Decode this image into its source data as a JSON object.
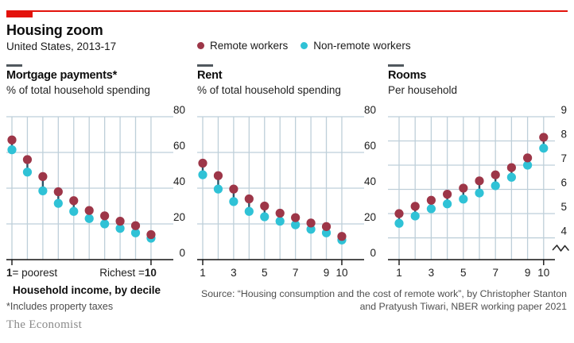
{
  "header": {
    "title": "Housing zoom",
    "subtitle": "United States, 2013-17"
  },
  "legend": {
    "items": [
      {
        "label": "Remote workers",
        "color": "#9d3648"
      },
      {
        "label": "Non-remote workers",
        "color": "#2fc2d6"
      }
    ]
  },
  "colors": {
    "accent_red": "#e3120b",
    "pair_line": "#2d5468",
    "gridline": "#becfd9",
    "axis": "#121212"
  },
  "chart_data": [
    {
      "type": "scatter",
      "title": "Mortgage payments*",
      "subtitle": "% of total household spending",
      "categories": [
        1,
        2,
        3,
        4,
        5,
        6,
        7,
        8,
        9,
        10
      ],
      "series": [
        {
          "name": "Remote workers",
          "values": [
            67,
            56,
            46.5,
            38,
            33,
            27.5,
            24.5,
            21.5,
            19,
            14
          ]
        },
        {
          "name": "Non-remote workers",
          "values": [
            61.5,
            49,
            38.5,
            31.5,
            27,
            23,
            20,
            17.5,
            15,
            12
          ]
        }
      ],
      "ylim": [
        0,
        80
      ],
      "yticks": [
        0,
        20,
        40,
        60,
        80
      ],
      "axis_break": false,
      "xaxis": {
        "style": "endpoints",
        "left_bold": "1",
        "left_text": "= poorest",
        "right_text": "Richest =",
        "right_bold": "10"
      }
    },
    {
      "type": "scatter",
      "title": "Rent",
      "subtitle": "% of total household spending",
      "categories": [
        1,
        2,
        3,
        4,
        5,
        6,
        7,
        8,
        9,
        10
      ],
      "series": [
        {
          "name": "Remote workers",
          "values": [
            54,
            47,
            39.5,
            34,
            30,
            26,
            23.5,
            20.5,
            18.5,
            13
          ]
        },
        {
          "name": "Non-remote workers",
          "values": [
            47.5,
            39.5,
            32.5,
            27,
            24,
            21.5,
            19.5,
            17,
            15,
            11
          ]
        }
      ],
      "ylim": [
        0,
        80
      ],
      "yticks": [
        0,
        20,
        40,
        60,
        80
      ],
      "axis_break": false,
      "xaxis": {
        "style": "ticks",
        "labels": [
          "1",
          "3",
          "5",
          "7",
          "9",
          "10"
        ],
        "at": [
          1,
          3,
          5,
          7,
          9,
          10
        ]
      }
    },
    {
      "type": "scatter",
      "title": "Rooms",
      "subtitle": "Per household",
      "categories": [
        1,
        2,
        3,
        4,
        5,
        6,
        7,
        8,
        9,
        10
      ],
      "series": [
        {
          "name": "Remote workers",
          "values": [
            5.0,
            5.3,
            5.55,
            5.8,
            6.05,
            6.35,
            6.6,
            6.9,
            7.3,
            8.15
          ]
        },
        {
          "name": "Non-remote workers",
          "values": [
            4.6,
            4.9,
            5.2,
            5.4,
            5.6,
            5.85,
            6.15,
            6.5,
            7.0,
            7.7
          ]
        }
      ],
      "ylim": [
        3.1,
        9
      ],
      "yticks": [
        4,
        5,
        6,
        7,
        8,
        9
      ],
      "axis_break": true,
      "xaxis": {
        "style": "ticks",
        "labels": [
          "1",
          "3",
          "5",
          "7",
          "9",
          "10"
        ],
        "at": [
          1,
          3,
          5,
          7,
          9,
          10
        ]
      }
    }
  ],
  "footer": {
    "x_caption": "Household income, by decile",
    "footnote": "*Includes property taxes",
    "source_line1": "Source: “Housing consumption and the cost of remote work”, by Christopher Stanton",
    "source_line2": "and Pratyush Tiwari, NBER working paper 2021",
    "brand": "The Economist"
  }
}
